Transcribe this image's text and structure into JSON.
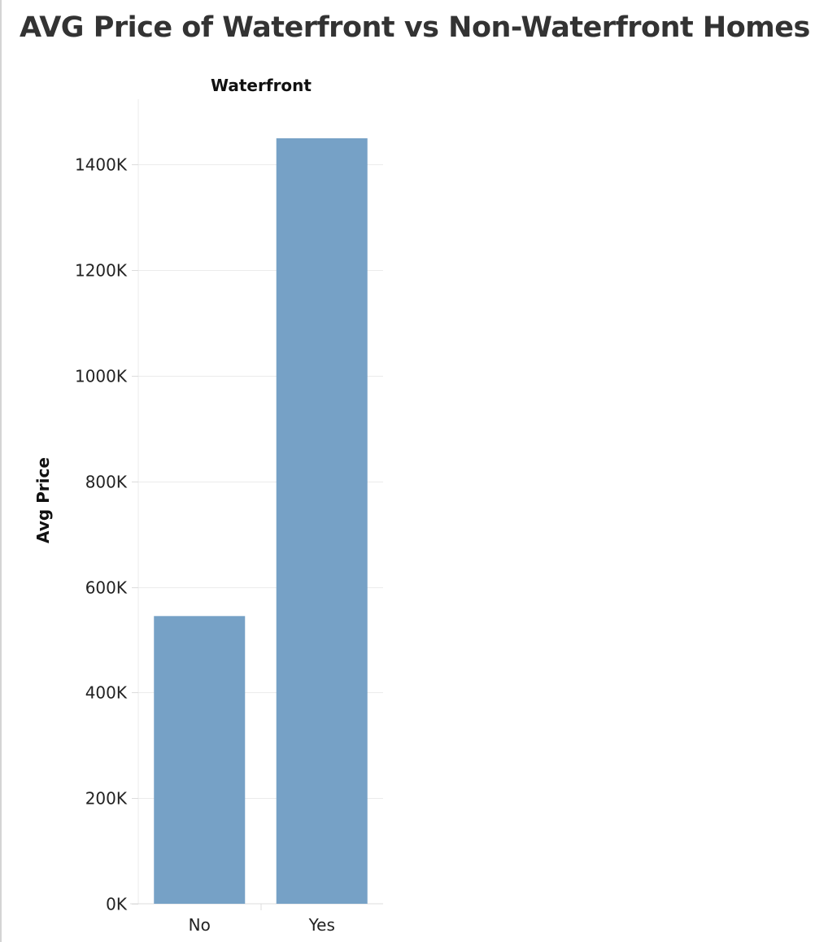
{
  "chart_data": {
    "type": "bar",
    "title": "AVG Price of Waterfront vs Non-Waterfront Homes",
    "column_header": "Waterfront",
    "ylabel": "Avg Price",
    "categories": [
      "No",
      "Yes"
    ],
    "values": [
      545000,
      1450000
    ],
    "ylim": [
      0,
      1450000
    ],
    "yticks": [
      {
        "value": 0,
        "label": "0K"
      },
      {
        "value": 200000,
        "label": "200K"
      },
      {
        "value": 400000,
        "label": "400K"
      },
      {
        "value": 600000,
        "label": "600K"
      },
      {
        "value": 800000,
        "label": "800K"
      },
      {
        "value": 1000000,
        "label": "1000K"
      },
      {
        "value": 1200000,
        "label": "1200K"
      },
      {
        "value": 1400000,
        "label": "1400K"
      }
    ],
    "grid": true,
    "bar_color": "#76a1c6",
    "grid_color": "#ebebeb"
  }
}
